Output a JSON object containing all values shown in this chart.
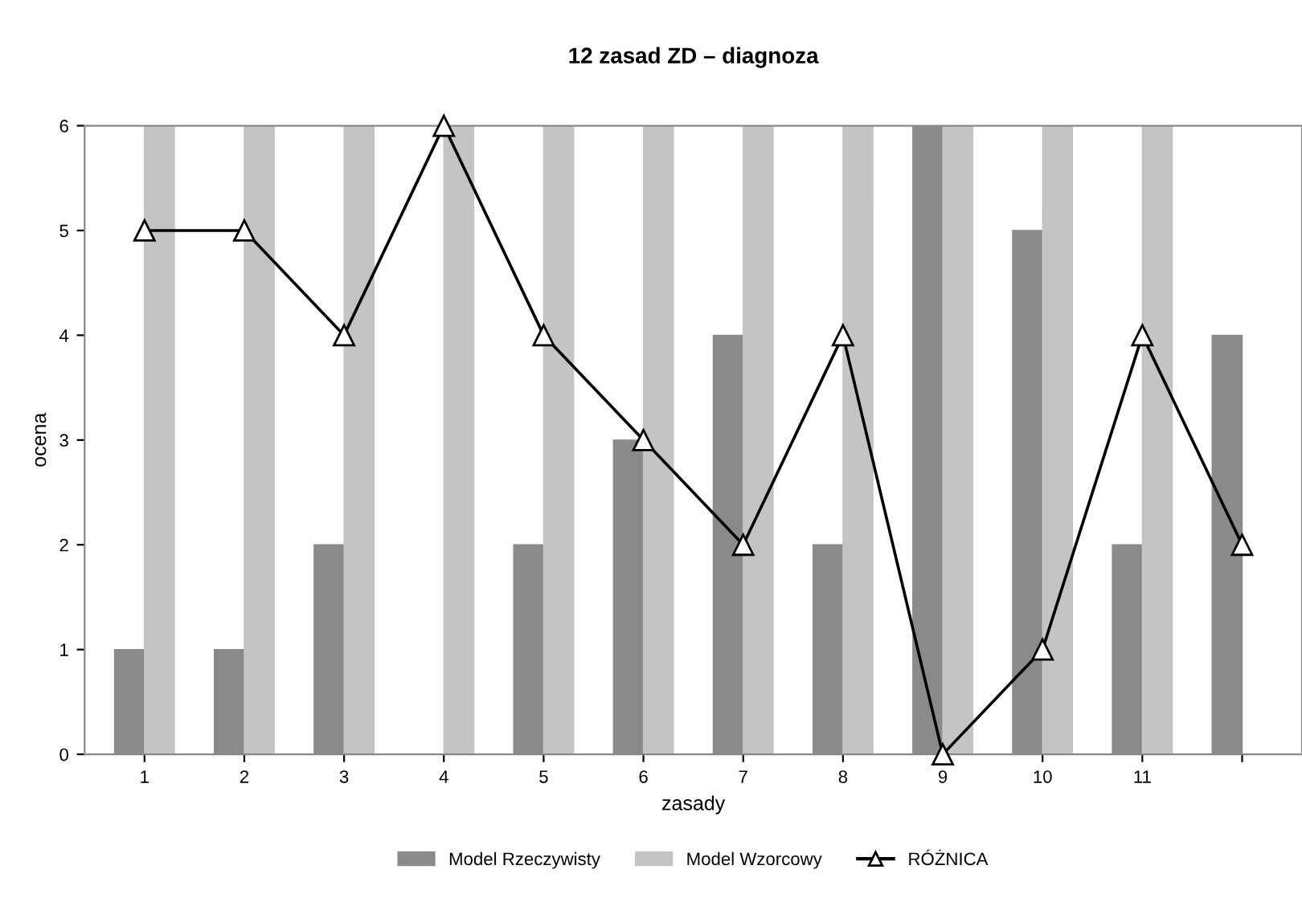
{
  "chart_data": {
    "type": "bar",
    "title": "12 zasad ZD – diagnoza",
    "xlabel": "zasady",
    "ylabel": "ocena",
    "categories": [
      "1",
      "2",
      "3",
      "4",
      "5",
      "6",
      "7",
      "8",
      "9",
      "10",
      "11",
      null
    ],
    "series": [
      {
        "name": "Model Rzeczywisty",
        "color": "#8a8a8a",
        "values": [
          1,
          1,
          2,
          0,
          2,
          3,
          4,
          2,
          6,
          5,
          2,
          4
        ]
      },
      {
        "name": "Model Wzorcowy",
        "color": "#c4c4c4",
        "values": [
          6,
          6,
          6,
          6,
          6,
          6,
          6,
          6,
          6,
          6,
          6,
          null
        ]
      },
      {
        "name": "RÓŻNICA",
        "type": "line",
        "color": "#000000",
        "marker": "triangle",
        "values": [
          5,
          5,
          4,
          6,
          4,
          3,
          2,
          4,
          0,
          1,
          4,
          2
        ]
      }
    ],
    "ylim": [
      0,
      6
    ],
    "yticks": [
      0,
      1,
      2,
      3,
      4,
      5,
      6
    ],
    "grid": false,
    "legend": "bottom"
  }
}
